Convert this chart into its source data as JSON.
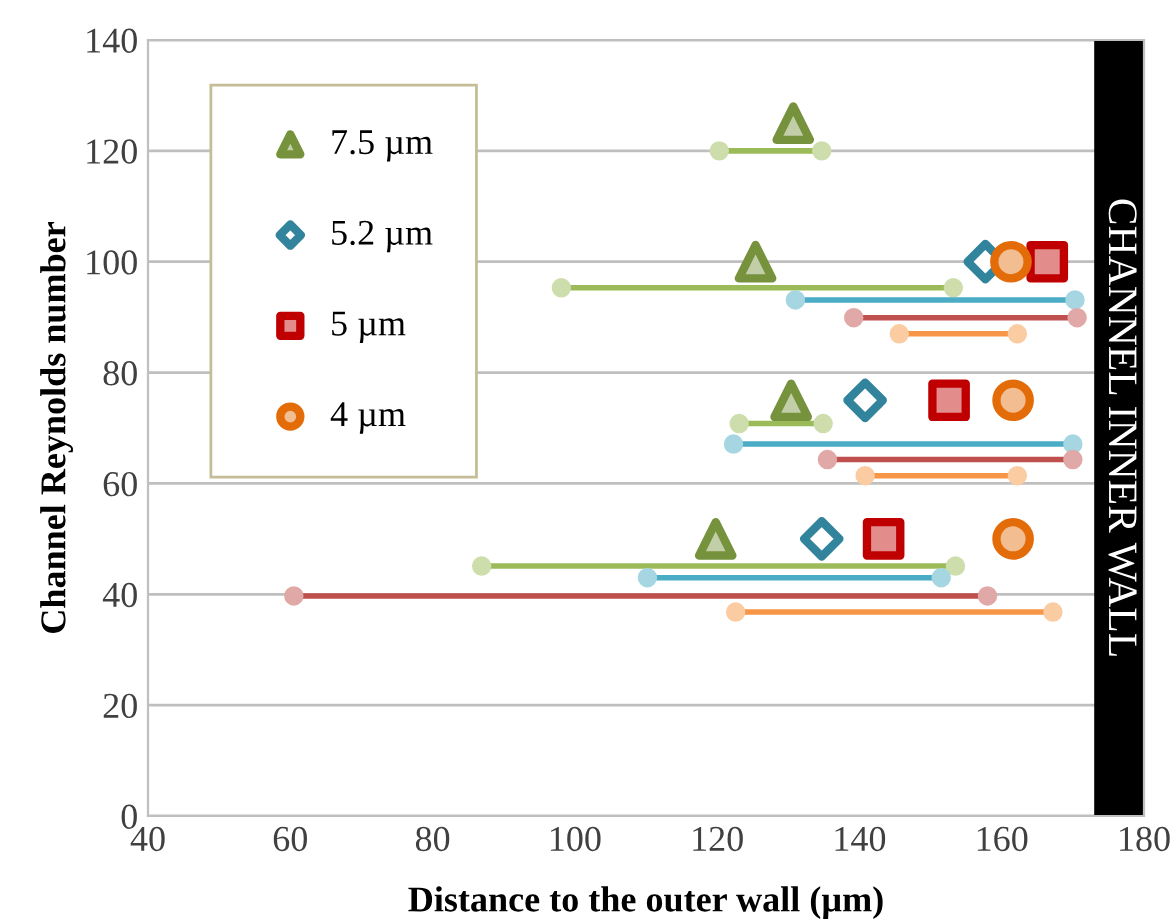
{
  "chart_data": {
    "type": "scatter",
    "xlabel": "Distance to the outer wall (µm)",
    "ylabel": "Channel Reynolds number",
    "xlim": [
      40,
      180
    ],
    "xticks": [
      40,
      60,
      80,
      100,
      120,
      140,
      160,
      180
    ],
    "ylim": [
      0,
      140
    ],
    "yticks": [
      0,
      20,
      40,
      60,
      80,
      100,
      120,
      140
    ],
    "grid": "y",
    "legend": "top left",
    "bands": [
      {
        "axis": "x",
        "from": 173,
        "to": 180,
        "label": "CHANNEL INNER WALL",
        "color": "#000000"
      }
    ],
    "series": [
      {
        "type": "line",
        "color": "#9bbb59",
        "marker": "circle",
        "x": [
          120.3,
          134.7
        ],
        "values": [
          120,
          120
        ]
      },
      {
        "type": "line",
        "color": "#9bbb59",
        "marker": "circle",
        "x": [
          98.1,
          153.2
        ],
        "values": [
          95.3,
          95.3
        ]
      },
      {
        "type": "line",
        "color": "#4bacc6",
        "marker": "circle",
        "x": [
          131,
          170.3
        ],
        "values": [
          93.1,
          93.1
        ]
      },
      {
        "type": "line",
        "color": "#c0504d",
        "marker": "circle",
        "x": [
          139.2,
          170.6
        ],
        "values": [
          89.9,
          89.9
        ]
      },
      {
        "type": "line",
        "color": "#f79646",
        "marker": "circle",
        "x": [
          145.6,
          162.2
        ],
        "values": [
          87,
          87
        ]
      },
      {
        "type": "line",
        "color": "#9bbb59",
        "marker": "circle",
        "x": [
          123.1,
          134.9
        ],
        "values": [
          70.8,
          70.8
        ]
      },
      {
        "type": "line",
        "color": "#4bacc6",
        "marker": "circle",
        "x": [
          122.3,
          170
        ],
        "values": [
          67.1,
          67.1
        ]
      },
      {
        "type": "line",
        "color": "#c0504d",
        "marker": "circle",
        "x": [
          135.5,
          170
        ],
        "values": [
          64.3,
          64.3
        ]
      },
      {
        "type": "line",
        "color": "#f79646",
        "marker": "circle",
        "x": [
          140.8,
          162.2
        ],
        "values": [
          61.4,
          61.4
        ]
      },
      {
        "type": "line",
        "color": "#9bbb59",
        "marker": "circle",
        "x": [
          86.9,
          153.5
        ],
        "values": [
          45.1,
          45.1
        ]
      },
      {
        "type": "line",
        "color": "#4bacc6",
        "marker": "circle",
        "x": [
          110.2,
          151.5
        ],
        "values": [
          43,
          43
        ]
      },
      {
        "type": "line",
        "color": "#c0504d",
        "marker": "circle",
        "x": [
          60.5,
          158
        ],
        "values": [
          39.7,
          39.7
        ]
      },
      {
        "type": "line",
        "color": "#f79646",
        "marker": "circle",
        "x": [
          122.6,
          167.2
        ],
        "values": [
          36.8,
          36.8
        ]
      },
      {
        "name": "7.5 µm",
        "color": "#76923c",
        "marker": "triangle",
        "x": [
          130.7,
          125.4,
          130.4,
          119.8
        ],
        "values": [
          125,
          100,
          75,
          50
        ]
      },
      {
        "name": "5.2 µm",
        "color": "#31849b",
        "marker": "diamond",
        "x": [
          157.7,
          140.8,
          134.7
        ],
        "values": [
          100,
          75,
          50
        ]
      },
      {
        "name": "5 µm",
        "color": "#c00000",
        "marker": "square",
        "x": [
          166.4,
          152.6,
          143.4
        ],
        "values": [
          100,
          75,
          50
        ]
      },
      {
        "name": "4 µm",
        "color": "#e36c09",
        "marker": "circle",
        "x": [
          161.3,
          161.6,
          161.6
        ],
        "values": [
          100,
          75,
          50
        ]
      }
    ]
  }
}
